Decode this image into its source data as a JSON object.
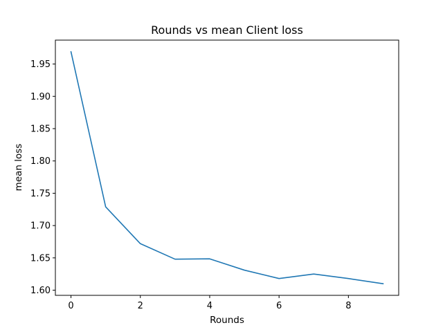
{
  "chart_data": {
    "type": "line",
    "title": "Rounds vs mean Client loss",
    "xlabel": "Rounds",
    "ylabel": "mean loss",
    "x": [
      0,
      1,
      2,
      3,
      4,
      5,
      6,
      7,
      8,
      9
    ],
    "series": [
      {
        "values": [
          1.969,
          1.729,
          1.672,
          1.648,
          1.6485,
          1.631,
          1.618,
          1.625,
          1.618,
          1.61
        ],
        "color": "#1f77b4"
      }
    ],
    "xlim": [
      -0.45,
      9.45
    ],
    "ylim": [
      1.592,
      1.987
    ],
    "xticks": [
      0,
      2,
      4,
      6,
      8
    ],
    "xtick_labels": [
      "0",
      "2",
      "4",
      "6",
      "8"
    ],
    "yticks": [
      1.6,
      1.65,
      1.7,
      1.75,
      1.8,
      1.85,
      1.9,
      1.95
    ],
    "ytick_labels": [
      "1.60",
      "1.65",
      "1.70",
      "1.75",
      "1.80",
      "1.85",
      "1.90",
      "1.95"
    ],
    "grid": false,
    "legend": false
  }
}
